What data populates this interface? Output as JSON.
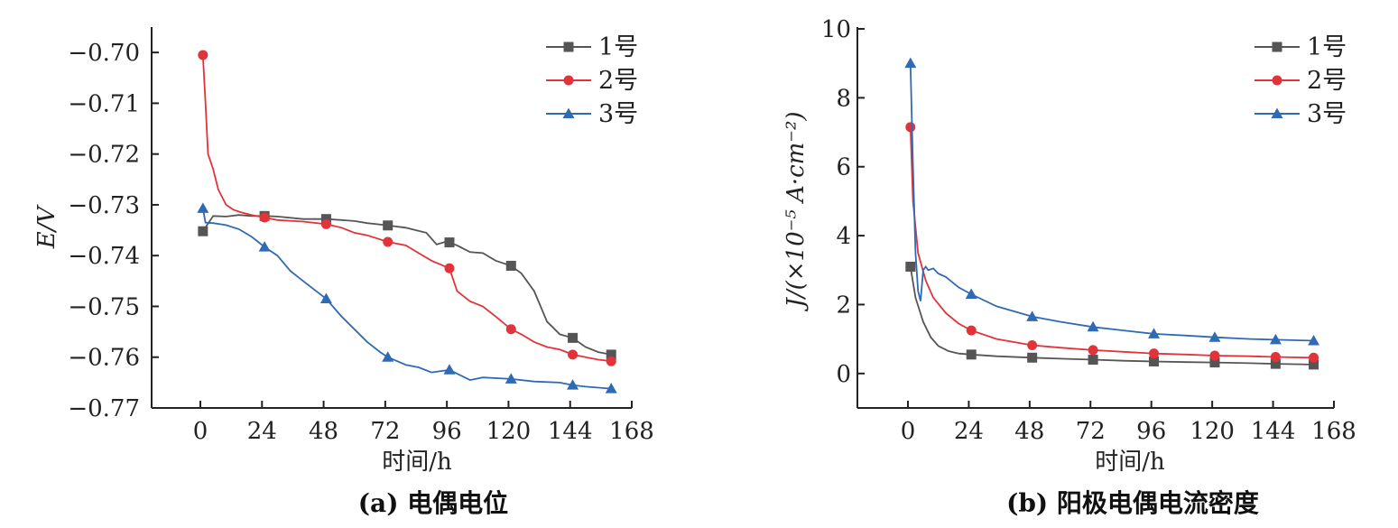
{
  "colors": {
    "s1": "#555555",
    "s2": "#e2333a",
    "s3": "#2f6ab4"
  },
  "chart_data": [
    {
      "type": "line",
      "caption": "(a) 电偶电位",
      "xlabel": "时间/h",
      "ylabel": "E/V",
      "xlim": [
        -18,
        168
      ],
      "ylim": [
        -0.77,
        -0.695
      ],
      "xticks": [
        0,
        24,
        48,
        72,
        96,
        120,
        144,
        168
      ],
      "yticks": [
        -0.77,
        -0.76,
        -0.75,
        -0.74,
        -0.73,
        -0.72,
        -0.71,
        -0.7
      ],
      "ytick_labels": [
        "−0.77",
        "−0.76",
        "−0.75",
        "−0.74",
        "−0.73",
        "−0.72",
        "−0.71",
        "−0.70"
      ],
      "legend": "top-right",
      "series": [
        {
          "name": "1号",
          "marker": "square",
          "color": "#555555",
          "x": [
            1,
            5,
            10,
            15,
            20,
            25,
            30,
            40,
            49,
            55,
            60,
            65,
            72,
            80,
            88,
            92,
            96,
            100,
            105,
            110,
            115,
            121,
            125,
            130,
            135,
            140,
            145,
            150,
            155,
            160
          ],
          "y": [
            -0.7352,
            -0.7322,
            -0.7323,
            -0.732,
            -0.7322,
            -0.7322,
            -0.7323,
            -0.7328,
            -0.7328,
            -0.733,
            -0.7332,
            -0.7336,
            -0.734,
            -0.7345,
            -0.7355,
            -0.7378,
            -0.7372,
            -0.738,
            -0.7393,
            -0.7395,
            -0.741,
            -0.742,
            -0.7435,
            -0.747,
            -0.753,
            -0.7555,
            -0.7562,
            -0.758,
            -0.759,
            -0.7595
          ],
          "marker_x": [
            1,
            25,
            49,
            73,
            97,
            121,
            145,
            160
          ]
        },
        {
          "name": "2号",
          "marker": "circle",
          "color": "#e2333a",
          "x": [
            1,
            2,
            3,
            5,
            7,
            10,
            13,
            16,
            20,
            25,
            30,
            40,
            49,
            55,
            60,
            65,
            73,
            80,
            85,
            90,
            97,
            100,
            105,
            110,
            115,
            121,
            125,
            130,
            135,
            140,
            145,
            150,
            155,
            160
          ],
          "y": [
            -0.7005,
            -0.71,
            -0.72,
            -0.723,
            -0.727,
            -0.73,
            -0.731,
            -0.7315,
            -0.732,
            -0.7325,
            -0.733,
            -0.7333,
            -0.7338,
            -0.7345,
            -0.7355,
            -0.736,
            -0.7373,
            -0.738,
            -0.7395,
            -0.741,
            -0.7425,
            -0.747,
            -0.749,
            -0.75,
            -0.752,
            -0.7545,
            -0.7555,
            -0.757,
            -0.758,
            -0.7585,
            -0.7595,
            -0.76,
            -0.7605,
            -0.7608
          ],
          "marker_x": [
            1,
            25,
            49,
            73,
            97,
            121,
            145,
            160
          ]
        },
        {
          "name": "3号",
          "marker": "triangle",
          "color": "#2f6ab4",
          "x": [
            1,
            2,
            5,
            10,
            15,
            20,
            25,
            30,
            35,
            40,
            49,
            55,
            60,
            65,
            70,
            73,
            80,
            85,
            90,
            97,
            105,
            110,
            121,
            130,
            140,
            145,
            150,
            155,
            160
          ],
          "y": [
            -0.7307,
            -0.7335,
            -0.7336,
            -0.734,
            -0.7348,
            -0.7363,
            -0.7383,
            -0.74,
            -0.743,
            -0.745,
            -0.7485,
            -0.752,
            -0.7545,
            -0.757,
            -0.759,
            -0.76,
            -0.7615,
            -0.762,
            -0.763,
            -0.7625,
            -0.7645,
            -0.764,
            -0.7643,
            -0.7648,
            -0.765,
            -0.7655,
            -0.7658,
            -0.766,
            -0.7662
          ],
          "marker_x": [
            1,
            25,
            49,
            73,
            97,
            121,
            145,
            160
          ]
        }
      ]
    },
    {
      "type": "line",
      "caption": "(b) 阳极电偶电流密度",
      "xlabel": "时间/h",
      "ylabel": "J/(×10⁻⁵ A·cm⁻²)",
      "xlim": [
        -18,
        168
      ],
      "ylim": [
        -1,
        10
      ],
      "xticks": [
        0,
        24,
        48,
        72,
        96,
        120,
        144,
        168
      ],
      "yticks": [
        0,
        2,
        4,
        6,
        8,
        10
      ],
      "ytick_labels": [
        "0",
        "2",
        "4",
        "6",
        "8",
        "10"
      ],
      "legend": "top-right",
      "series": [
        {
          "name": "1号",
          "marker": "square",
          "color": "#555555",
          "x": [
            1,
            3,
            6,
            9,
            12,
            16,
            20,
            25,
            35,
            49,
            60,
            73,
            85,
            97,
            110,
            121,
            135,
            145,
            160
          ],
          "y": [
            3.1,
            2.2,
            1.5,
            1.05,
            0.8,
            0.65,
            0.58,
            0.55,
            0.5,
            0.46,
            0.43,
            0.4,
            0.37,
            0.35,
            0.33,
            0.32,
            0.3,
            0.28,
            0.26
          ],
          "marker_x": [
            1,
            25,
            49,
            73,
            97,
            121,
            145,
            160
          ]
        },
        {
          "name": "2号",
          "marker": "circle",
          "color": "#e2333a",
          "x": [
            1,
            2,
            4,
            7,
            10,
            15,
            20,
            25,
            35,
            49,
            60,
            73,
            85,
            97,
            110,
            121,
            135,
            145,
            160
          ],
          "y": [
            7.15,
            5.0,
            3.5,
            2.7,
            2.2,
            1.75,
            1.45,
            1.25,
            1.0,
            0.82,
            0.75,
            0.68,
            0.63,
            0.58,
            0.55,
            0.52,
            0.5,
            0.48,
            0.46
          ],
          "marker_x": [
            1,
            25,
            49,
            73,
            97,
            121,
            145,
            160
          ]
        },
        {
          "name": "3号",
          "marker": "triangle",
          "color": "#2f6ab4",
          "x": [
            1,
            2,
            3,
            4,
            5,
            6,
            7,
            8,
            10,
            12,
            15,
            20,
            25,
            35,
            49,
            60,
            73,
            85,
            97,
            110,
            121,
            135,
            145,
            160
          ],
          "y": [
            9.0,
            6.0,
            3.5,
            2.4,
            2.1,
            3.0,
            3.1,
            3.0,
            3.05,
            2.9,
            2.8,
            2.5,
            2.3,
            1.95,
            1.65,
            1.5,
            1.35,
            1.25,
            1.15,
            1.1,
            1.05,
            1.0,
            0.98,
            0.95
          ],
          "marker_x": [
            1,
            25,
            49,
            73,
            97,
            121,
            145,
            160
          ]
        }
      ]
    }
  ]
}
